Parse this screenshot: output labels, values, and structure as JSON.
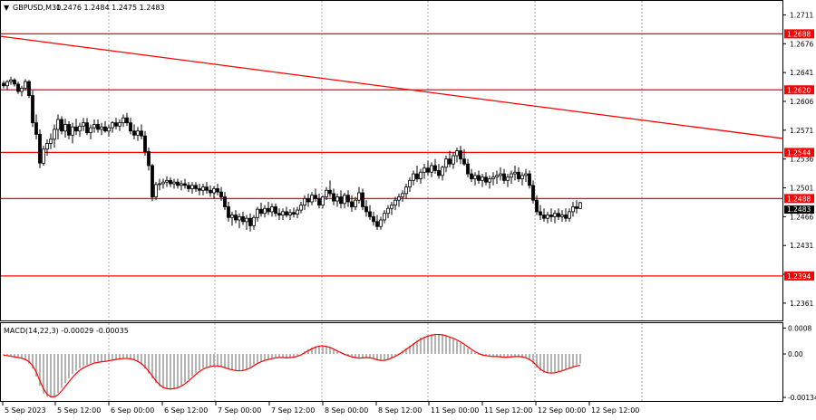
{
  "header": {
    "symbol_label": "GBPUSD,M30",
    "ohlc_label": "1.2476 1.2484 1.2475 1.2483"
  },
  "macd": {
    "label": "MACD(14,22,3) -0.00029 -0.00035",
    "ticks": [
      "0.0008",
      "0.00",
      "-0.00134"
    ]
  },
  "price_axis_ticks": [
    "1.2711",
    "1.2676",
    "1.2641",
    "1.2606",
    "1.2571",
    "1.2536",
    "1.2501",
    "1.2466",
    "1.2431",
    "1.2396",
    "1.2361"
  ],
  "time_axis_labels": [
    "5 Sep 2023",
    "5 Sep 12:00",
    "6 Sep 00:00",
    "6 Sep 12:00",
    "7 Sep 00:00",
    "7 Sep 12:00",
    "8 Sep 00:00",
    "8 Sep 12:00",
    "11 Sep 00:00",
    "11 Sep 12:00",
    "12 Sep 00:00",
    "12 Sep 12:00"
  ],
  "levels": [
    {
      "label": "1.2688",
      "price": 1.2688
    },
    {
      "label": "1.2620",
      "price": 1.262
    },
    {
      "label": "1.2544",
      "price": 1.2544
    },
    {
      "label": "1.2488",
      "price": 1.2488
    },
    {
      "label": "1.2394",
      "price": 1.2394
    }
  ],
  "hidden_price_tag": "1.2483",
  "colors": {
    "level_line": "#ff0000",
    "level_tag_bg": "#ff0000",
    "candle": "#000000",
    "grid": "#808080",
    "macd_signal": "#ff0000",
    "macd_hist": "#a0a0a0"
  },
  "chart_data": {
    "type": "candlestick",
    "timeframe": "M30",
    "price_range": [
      1.234,
      1.2728
    ],
    "macd_range": [
      -0.00145,
      0.00095
    ],
    "trendline": {
      "start": {
        "bar": 0,
        "price": 1.2685
      },
      "end": {
        "bar": 172,
        "price": 1.2561
      }
    },
    "candles": [
      [
        1.2628,
        1.2631,
        1.2622,
        1.2625
      ],
      [
        1.2625,
        1.2632,
        1.262,
        1.263
      ],
      [
        1.263,
        1.2636,
        1.2626,
        1.2632
      ],
      [
        1.2632,
        1.2634,
        1.2624,
        1.2627
      ],
      [
        1.2627,
        1.263,
        1.2615,
        1.2618
      ],
      [
        1.2618,
        1.2625,
        1.2612,
        1.2622
      ],
      [
        1.2622,
        1.2633,
        1.262,
        1.263
      ],
      [
        1.263,
        1.2632,
        1.261,
        1.2613
      ],
      [
        1.2613,
        1.2619,
        1.2575,
        1.258
      ],
      [
        1.258,
        1.259,
        1.256,
        1.2566
      ],
      [
        1.2566,
        1.2572,
        1.2525,
        1.2531
      ],
      [
        1.2531,
        1.2552,
        1.2528,
        1.2548
      ],
      [
        1.2548,
        1.256,
        1.254,
        1.2555
      ],
      [
        1.2555,
        1.2567,
        1.2548,
        1.256
      ],
      [
        1.256,
        1.2578,
        1.255,
        1.2572
      ],
      [
        1.2572,
        1.259,
        1.256,
        1.2584
      ],
      [
        1.2584,
        1.2588,
        1.2566,
        1.257
      ],
      [
        1.257,
        1.2585,
        1.2562,
        1.2578
      ],
      [
        1.2578,
        1.2582,
        1.256,
        1.2565
      ],
      [
        1.2565,
        1.258,
        1.2555,
        1.2575
      ],
      [
        1.2575,
        1.2585,
        1.2565,
        1.257
      ],
      [
        1.257,
        1.258,
        1.2563,
        1.2576
      ],
      [
        1.2576,
        1.2586,
        1.257,
        1.258
      ],
      [
        1.258,
        1.2586,
        1.2565,
        1.2568
      ],
      [
        1.2568,
        1.2578,
        1.256,
        1.2574
      ],
      [
        1.2574,
        1.2584,
        1.2568,
        1.2578
      ],
      [
        1.2578,
        1.2584,
        1.2568,
        1.2572
      ],
      [
        1.2572,
        1.258,
        1.2565,
        1.2575
      ],
      [
        1.2575,
        1.2582,
        1.2568,
        1.257
      ],
      [
        1.257,
        1.2578,
        1.2563,
        1.2574
      ],
      [
        1.2574,
        1.2582,
        1.2568,
        1.258
      ],
      [
        1.258,
        1.2586,
        1.2572,
        1.2576
      ],
      [
        1.2576,
        1.2584,
        1.257,
        1.258
      ],
      [
        1.258,
        1.259,
        1.2575,
        1.2586
      ],
      [
        1.2586,
        1.2592,
        1.2576,
        1.258
      ],
      [
        1.258,
        1.2586,
        1.2566,
        1.257
      ],
      [
        1.257,
        1.2578,
        1.256,
        1.2565
      ],
      [
        1.2565,
        1.2575,
        1.2558,
        1.257
      ],
      [
        1.257,
        1.2578,
        1.256,
        1.2564
      ],
      [
        1.2564,
        1.257,
        1.254,
        1.2545
      ],
      [
        1.2545,
        1.255,
        1.2522,
        1.2528
      ],
      [
        1.2528,
        1.253,
        1.2485,
        1.249
      ],
      [
        1.249,
        1.2508,
        1.2486,
        1.2505
      ],
      [
        1.2505,
        1.2512,
        1.2498,
        1.2506
      ],
      [
        1.2506,
        1.2512,
        1.25,
        1.2508
      ],
      [
        1.2508,
        1.2515,
        1.2502,
        1.251
      ],
      [
        1.251,
        1.2514,
        1.2502,
        1.2506
      ],
      [
        1.2506,
        1.2512,
        1.25,
        1.2508
      ],
      [
        1.2508,
        1.2512,
        1.25,
        1.2504
      ],
      [
        1.2504,
        1.251,
        1.2498,
        1.2506
      ],
      [
        1.2506,
        1.2512,
        1.25,
        1.2504
      ],
      [
        1.2504,
        1.2508,
        1.2496,
        1.25
      ],
      [
        1.25,
        1.2508,
        1.2494,
        1.2504
      ],
      [
        1.2504,
        1.2508,
        1.2496,
        1.25
      ],
      [
        1.25,
        1.2506,
        1.2492,
        1.2498
      ],
      [
        1.2498,
        1.2506,
        1.2492,
        1.2502
      ],
      [
        1.2502,
        1.2508,
        1.2494,
        1.2498
      ],
      [
        1.2498,
        1.2504,
        1.249,
        1.2495
      ],
      [
        1.2495,
        1.2503,
        1.2488,
        1.25
      ],
      [
        1.25,
        1.2506,
        1.2492,
        1.2496
      ],
      [
        1.2496,
        1.2502,
        1.2485,
        1.249
      ],
      [
        1.249,
        1.2496,
        1.2474,
        1.2478
      ],
      [
        1.2478,
        1.2484,
        1.246,
        1.2465
      ],
      [
        1.2465,
        1.2472,
        1.2455,
        1.2468
      ],
      [
        1.2468,
        1.2474,
        1.2458,
        1.2462
      ],
      [
        1.2462,
        1.247,
        1.2452,
        1.2466
      ],
      [
        1.2466,
        1.2472,
        1.2456,
        1.246
      ],
      [
        1.246,
        1.2468,
        1.245,
        1.2464
      ],
      [
        1.2464,
        1.247,
        1.2448,
        1.2455
      ],
      [
        1.2455,
        1.2468,
        1.245,
        1.2465
      ],
      [
        1.2465,
        1.2478,
        1.246,
        1.2475
      ],
      [
        1.2475,
        1.2483,
        1.2466,
        1.247
      ],
      [
        1.247,
        1.248,
        1.2465,
        1.2476
      ],
      [
        1.2476,
        1.2484,
        1.2468,
        1.2472
      ],
      [
        1.2472,
        1.2482,
        1.2466,
        1.2478
      ],
      [
        1.2478,
        1.2482,
        1.2466,
        1.247
      ],
      [
        1.247,
        1.2476,
        1.2462,
        1.2468
      ],
      [
        1.2468,
        1.2476,
        1.2462,
        1.2472
      ],
      [
        1.2472,
        1.2478,
        1.2465,
        1.2468
      ],
      [
        1.2468,
        1.2475,
        1.2462,
        1.2471
      ],
      [
        1.2471,
        1.2477,
        1.2465,
        1.2469
      ],
      [
        1.2469,
        1.2478,
        1.2464,
        1.2474
      ],
      [
        1.2474,
        1.2484,
        1.247,
        1.248
      ],
      [
        1.248,
        1.2492,
        1.2474,
        1.2488
      ],
      [
        1.2488,
        1.2494,
        1.2478,
        1.2484
      ],
      [
        1.2484,
        1.2496,
        1.248,
        1.2492
      ],
      [
        1.2492,
        1.25,
        1.2484,
        1.2488
      ],
      [
        1.2488,
        1.2494,
        1.2476,
        1.248
      ],
      [
        1.248,
        1.2492,
        1.2476,
        1.249
      ],
      [
        1.249,
        1.2502,
        1.2486,
        1.2498
      ],
      [
        1.2498,
        1.251,
        1.249,
        1.2494
      ],
      [
        1.2494,
        1.25,
        1.248,
        1.2485
      ],
      [
        1.2485,
        1.2494,
        1.2478,
        1.249
      ],
      [
        1.249,
        1.2498,
        1.2476,
        1.2482
      ],
      [
        1.2482,
        1.2495,
        1.2476,
        1.2492
      ],
      [
        1.2492,
        1.2498,
        1.2478,
        1.2484
      ],
      [
        1.2484,
        1.2492,
        1.2472,
        1.2478
      ],
      [
        1.2478,
        1.249,
        1.2474,
        1.2486
      ],
      [
        1.2486,
        1.2502,
        1.2482,
        1.2495
      ],
      [
        1.2495,
        1.25,
        1.2474,
        1.2478
      ],
      [
        1.2478,
        1.2486,
        1.2466,
        1.2472
      ],
      [
        1.2472,
        1.248,
        1.2462,
        1.2466
      ],
      [
        1.2466,
        1.2472,
        1.2455,
        1.246
      ],
      [
        1.246,
        1.2468,
        1.245,
        1.2454
      ],
      [
        1.2454,
        1.2466,
        1.245,
        1.2462
      ],
      [
        1.2462,
        1.2474,
        1.2458,
        1.247
      ],
      [
        1.247,
        1.248,
        1.2464,
        1.2476
      ],
      [
        1.2476,
        1.2484,
        1.2468,
        1.248
      ],
      [
        1.248,
        1.249,
        1.2474,
        1.2486
      ],
      [
        1.2486,
        1.2494,
        1.2478,
        1.249
      ],
      [
        1.249,
        1.2498,
        1.2484,
        1.2494
      ],
      [
        1.2494,
        1.2506,
        1.2488,
        1.2502
      ],
      [
        1.2502,
        1.2514,
        1.2496,
        1.251
      ],
      [
        1.251,
        1.2522,
        1.2504,
        1.2518
      ],
      [
        1.2518,
        1.2528,
        1.2508,
        1.2512
      ],
      [
        1.2512,
        1.2524,
        1.2506,
        1.252
      ],
      [
        1.252,
        1.253,
        1.2512,
        1.2525
      ],
      [
        1.2525,
        1.2534,
        1.2516,
        1.252
      ],
      [
        1.252,
        1.2532,
        1.2514,
        1.2528
      ],
      [
        1.2528,
        1.2536,
        1.2518,
        1.2522
      ],
      [
        1.2522,
        1.253,
        1.2512,
        1.2516
      ],
      [
        1.2516,
        1.2528,
        1.251,
        1.2526
      ],
      [
        1.2526,
        1.254,
        1.252,
        1.2536
      ],
      [
        1.2536,
        1.2546,
        1.2526,
        1.253
      ],
      [
        1.253,
        1.2544,
        1.2524,
        1.254
      ],
      [
        1.254,
        1.255,
        1.2532,
        1.2546
      ],
      [
        1.2546,
        1.2552,
        1.253,
        1.2536
      ],
      [
        1.2536,
        1.2548,
        1.2528,
        1.253
      ],
      [
        1.253,
        1.2536,
        1.2514,
        1.2518
      ],
      [
        1.2518,
        1.2524,
        1.2508,
        1.2512
      ],
      [
        1.2512,
        1.252,
        1.2504,
        1.2516
      ],
      [
        1.2516,
        1.2522,
        1.2506,
        1.251
      ],
      [
        1.251,
        1.2518,
        1.2502,
        1.2514
      ],
      [
        1.2514,
        1.252,
        1.2504,
        1.2508
      ],
      [
        1.2508,
        1.2516,
        1.25,
        1.2512
      ],
      [
        1.2512,
        1.252,
        1.2504,
        1.2514
      ],
      [
        1.2514,
        1.2522,
        1.2506,
        1.2516
      ],
      [
        1.2516,
        1.2526,
        1.251,
        1.2518
      ],
      [
        1.2518,
        1.2524,
        1.2506,
        1.251
      ],
      [
        1.251,
        1.2518,
        1.2502,
        1.2514
      ],
      [
        1.2514,
        1.2522,
        1.2506,
        1.2518
      ],
      [
        1.2518,
        1.2528,
        1.251,
        1.252
      ],
      [
        1.252,
        1.2526,
        1.2508,
        1.2512
      ],
      [
        1.2512,
        1.252,
        1.2504,
        1.2516
      ],
      [
        1.2516,
        1.2524,
        1.2508,
        1.2518
      ],
      [
        1.2518,
        1.2522,
        1.25,
        1.2504
      ],
      [
        1.2504,
        1.251,
        1.2482,
        1.2486
      ],
      [
        1.2486,
        1.2492,
        1.2468,
        1.2472
      ],
      [
        1.2472,
        1.248,
        1.2462,
        1.2468
      ],
      [
        1.2468,
        1.2476,
        1.246,
        1.2464
      ],
      [
        1.2464,
        1.2472,
        1.2458,
        1.2468
      ],
      [
        1.2468,
        1.2476,
        1.246,
        1.2466
      ],
      [
        1.2466,
        1.2474,
        1.2458,
        1.247
      ],
      [
        1.247,
        1.2476,
        1.2462,
        1.2466
      ],
      [
        1.2466,
        1.2474,
        1.246,
        1.2468
      ],
      [
        1.2468,
        1.2476,
        1.246,
        1.2464
      ],
      [
        1.2464,
        1.2476,
        1.246,
        1.2472
      ],
      [
        1.2472,
        1.2484,
        1.2466,
        1.2478
      ],
      [
        1.2478,
        1.2486,
        1.247,
        1.2476
      ],
      [
        1.2476,
        1.2484,
        1.2475,
        1.2483
      ]
    ],
    "macd_hist": [
      -4e-05,
      -6e-05,
      -8e-05,
      -0.0001,
      -0.00012,
      -0.00015,
      -0.0002,
      -0.0003,
      -0.00045,
      -0.0007,
      -0.00098,
      -0.00122,
      -0.00132,
      -0.00134,
      -0.0013,
      -0.0012,
      -0.00105,
      -0.0009,
      -0.00075,
      -0.00062,
      -0.00052,
      -0.00044,
      -0.00038,
      -0.00033,
      -0.00029,
      -0.00026,
      -0.00024,
      -0.00023,
      -0.00022,
      -0.0002,
      -0.00018,
      -0.00016,
      -0.00014,
      -0.00013,
      -0.00014,
      -0.00016,
      -0.0002,
      -0.00026,
      -0.00034,
      -0.00046,
      -0.0006,
      -0.00076,
      -0.0009,
      -0.001,
      -0.00106,
      -0.00108,
      -0.00108,
      -0.00106,
      -0.00102,
      -0.00096,
      -0.00088,
      -0.00078,
      -0.00068,
      -0.00058,
      -0.0005,
      -0.00044,
      -0.0004,
      -0.00037,
      -0.00036,
      -0.00037,
      -0.0004,
      -0.00044,
      -0.00048,
      -0.0005,
      -0.00052,
      -0.00052,
      -0.0005,
      -0.00046,
      -0.0004,
      -0.00032,
      -0.00026,
      -0.00022,
      -0.00018,
      -0.00015,
      -0.00012,
      -0.0001,
      -0.0001,
      -0.00011,
      -0.00012,
      -0.00011,
      -9e-05,
      -5e-05,
      0.0,
      8e-05,
      0.00014,
      0.0002,
      0.00024,
      0.00026,
      0.00025,
      0.00022,
      0.00018,
      0.00012,
      6e-05,
      1e-05,
      -4e-05,
      -8e-05,
      -0.00011,
      -0.00013,
      -0.00014,
      -0.00012,
      -0.0001,
      -0.00012,
      -0.00016,
      -0.0002,
      -0.00022,
      -0.0002,
      -0.00016,
      -0.0001,
      -4e-05,
      2e-05,
      0.0001,
      0.00018,
      0.00026,
      0.00034,
      0.00042,
      0.0005,
      0.00054,
      0.00058,
      0.0006,
      0.00062,
      0.0006,
      0.00058,
      0.00054,
      0.0005,
      0.00046,
      0.0004,
      0.00034,
      0.00026,
      0.00018,
      0.0001,
      4e-05,
      -2e-05,
      -4e-05,
      -6e-05,
      -8e-05,
      -8e-05,
      -8e-05,
      -9e-05,
      -0.0001,
      -0.0001,
      -9e-05,
      -8e-05,
      -8e-05,
      -0.0001,
      -0.00014,
      -0.0002,
      -0.0003,
      -0.00042,
      -0.00052,
      -0.00058,
      -0.0006,
      -0.0006,
      -0.00058,
      -0.00054,
      -0.0005,
      -0.00046,
      -0.00042,
      -0.00038,
      -0.00034,
      -0.00029
    ],
    "macd_signal": [
      -4e-05,
      -5e-05,
      -7e-05,
      -9e-05,
      -0.00011,
      -0.00013,
      -0.00017,
      -0.00024,
      -0.00036,
      -0.00056,
      -0.00082,
      -0.00108,
      -0.00124,
      -0.00132,
      -0.00132,
      -0.00126,
      -0.00114,
      -0.001,
      -0.00086,
      -0.00072,
      -0.0006,
      -0.0005,
      -0.00043,
      -0.00037,
      -0.00032,
      -0.00028,
      -0.00026,
      -0.00024,
      -0.00023,
      -0.00021,
      -0.00019,
      -0.00017,
      -0.00015,
      -0.00014,
      -0.00014,
      -0.00015,
      -0.00018,
      -0.00023,
      -0.0003,
      -0.0004,
      -0.00053,
      -0.00068,
      -0.00083,
      -0.00095,
      -0.00103,
      -0.00107,
      -0.00108,
      -0.00107,
      -0.00104,
      -0.00099,
      -0.00092,
      -0.00083,
      -0.00073,
      -0.00063,
      -0.00054,
      -0.00047,
      -0.00042,
      -0.00039,
      -0.00037,
      -0.00037,
      -0.00039,
      -0.00042,
      -0.00046,
      -0.00049,
      -0.00051,
      -0.00052,
      -0.00051,
      -0.00048,
      -0.00043,
      -0.00036,
      -0.00029,
      -0.00024,
      -0.0002,
      -0.00017,
      -0.00014,
      -0.00012,
      -0.00011,
      -0.00011,
      -0.00012,
      -0.00011,
      -0.0001,
      -7e-05,
      -3e-05,
      4e-05,
      0.0001,
      0.00016,
      0.00021,
      0.00024,
      0.00025,
      0.00023,
      0.0002,
      0.00015,
      9e-05,
      4e-05,
      -1e-05,
      -5e-05,
      -9e-05,
      -0.00011,
      -0.00013,
      -0.00012,
      -0.00011,
      -0.00012,
      -0.00014,
      -0.00018,
      -0.0002,
      -0.0002,
      -0.00017,
      -0.00012,
      -7e-05,
      -1e-05,
      6e-05,
      0.00014,
      0.00022,
      0.0003,
      0.00038,
      0.00045,
      0.00051,
      0.00055,
      0.00058,
      0.0006,
      0.0006,
      0.00059,
      0.00056,
      0.00052,
      0.00048,
      0.00043,
      0.00037,
      0.0003,
      0.00022,
      0.00014,
      7e-05,
      1e-05,
      -3e-05,
      -5e-05,
      -7e-05,
      -8e-05,
      -8e-05,
      -9e-05,
      -0.0001,
      -0.0001,
      -9e-05,
      -8e-05,
      -8e-05,
      -9e-05,
      -0.00012,
      -0.00017,
      -0.00025,
      -0.00036,
      -0.00047,
      -0.00054,
      -0.00058,
      -0.00059,
      -0.00058,
      -0.00055,
      -0.00052,
      -0.00048,
      -0.00044,
      -0.0004,
      -0.00037,
      -0.00035
    ]
  }
}
